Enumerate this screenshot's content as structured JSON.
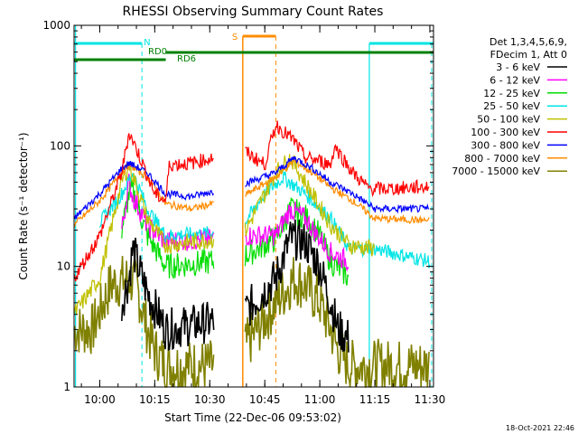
{
  "chart_data": {
    "type": "line",
    "title": "RHESSI Observing Summary Count Rates",
    "xlabel": "Start Time (22-Dec-06 09:53:02)",
    "ylabel": "Count Rate (s⁻¹ detector⁻¹)",
    "yscale": "log",
    "ylim": [
      1,
      1000
    ],
    "xlim_minutes": [
      0,
      98
    ],
    "xticks": [
      {
        "m": 7,
        "label": "10:00"
      },
      {
        "m": 22,
        "label": "10:15"
      },
      {
        "m": 37,
        "label": "10:30"
      },
      {
        "m": 52,
        "label": "10:45"
      },
      {
        "m": 67,
        "label": "11:00"
      },
      {
        "m": 82,
        "label": "11:15"
      },
      {
        "m": 97,
        "label": "11:30"
      }
    ],
    "yticks": [
      {
        "v": 1,
        "label": "1"
      },
      {
        "v": 10,
        "label": "10"
      },
      {
        "v": 100,
        "label": "100"
      },
      {
        "v": 1000,
        "label": "1000"
      }
    ],
    "legend": {
      "header": [
        "Det 1,3,4,5,6,9,",
        "FDecim 1, Att 0"
      ],
      "placement": "right"
    },
    "series": [
      {
        "name": "3 - 6 keV",
        "color": "#000000",
        "points": [
          [
            13,
            5
          ],
          [
            15,
            8
          ],
          [
            16,
            14
          ],
          [
            18,
            9
          ],
          [
            20,
            6
          ],
          [
            25,
            3
          ],
          [
            38,
            3.5
          ],
          [
            46,
            4
          ],
          [
            55,
            8
          ],
          [
            59,
            17
          ],
          [
            63,
            16
          ],
          [
            67,
            10
          ],
          [
            70,
            5
          ],
          [
            72,
            3
          ],
          [
            75,
            2.5
          ]
        ]
      },
      {
        "name": "6 - 12 keV",
        "color": "#ff00ff",
        "points": [
          [
            13,
            20
          ],
          [
            15,
            50
          ],
          [
            16,
            38
          ],
          [
            20,
            22
          ],
          [
            25,
            16
          ],
          [
            38,
            17
          ],
          [
            46,
            18
          ],
          [
            55,
            18
          ],
          [
            59,
            30
          ],
          [
            63,
            25
          ],
          [
            67,
            17
          ],
          [
            70,
            13
          ],
          [
            75,
            11
          ]
        ]
      },
      {
        "name": "12 - 25 keV",
        "color": "#00dd00",
        "points": [
          [
            13,
            20
          ],
          [
            15,
            40
          ],
          [
            16,
            42
          ],
          [
            20,
            18
          ],
          [
            25,
            10
          ],
          [
            38,
            11
          ],
          [
            46,
            12
          ],
          [
            55,
            17
          ],
          [
            59,
            30
          ],
          [
            63,
            26
          ],
          [
            67,
            18
          ],
          [
            70,
            11
          ],
          [
            75,
            8
          ]
        ]
      },
      {
        "name": "25 - 50 keV",
        "color": "#00e5e5",
        "points": [
          [
            7,
            23
          ],
          [
            13,
            40
          ],
          [
            16,
            60
          ],
          [
            20,
            30
          ],
          [
            25,
            18
          ],
          [
            38,
            19
          ],
          [
            46,
            22
          ],
          [
            52,
            40
          ],
          [
            57,
            55
          ],
          [
            63,
            40
          ],
          [
            70,
            25
          ],
          [
            75,
            14
          ],
          [
            82,
            14
          ],
          [
            97,
            11
          ]
        ]
      },
      {
        "name": "50 - 100 keV",
        "color": "#c0c000",
        "points": [
          [
            0,
            4
          ],
          [
            7,
            8
          ],
          [
            13,
            50
          ],
          [
            15,
            70
          ],
          [
            20,
            25
          ],
          [
            25,
            15
          ],
          [
            46,
            18
          ],
          [
            55,
            60
          ],
          [
            59,
            80
          ],
          [
            63,
            50
          ],
          [
            70,
            22
          ],
          [
            75,
            15
          ],
          [
            82,
            14
          ]
        ]
      },
      {
        "name": "100 - 300 keV",
        "color": "#ff0000",
        "points": [
          [
            0,
            8
          ],
          [
            7,
            18
          ],
          [
            13,
            60
          ],
          [
            15,
            130
          ],
          [
            18,
            80
          ],
          [
            22,
            40
          ],
          [
            25,
            35
          ],
          [
            26,
            70
          ],
          [
            32,
            72
          ],
          [
            46,
            92
          ],
          [
            52,
            70
          ],
          [
            55,
            150
          ],
          [
            60,
            110
          ],
          [
            63,
            80
          ],
          [
            67,
            75
          ],
          [
            70,
            70
          ],
          [
            71,
            100
          ],
          [
            76,
            60
          ],
          [
            80,
            45
          ],
          [
            82,
            44
          ],
          [
            86,
            44
          ],
          [
            97,
            46
          ]
        ]
      },
      {
        "name": "300 - 800 keV",
        "color": "#0000ff",
        "points": [
          [
            0,
            25
          ],
          [
            7,
            40
          ],
          [
            13,
            65
          ],
          [
            15,
            72
          ],
          [
            20,
            60
          ],
          [
            25,
            40
          ],
          [
            32,
            38
          ],
          [
            46,
            48
          ],
          [
            55,
            60
          ],
          [
            60,
            80
          ],
          [
            65,
            65
          ],
          [
            70,
            50
          ],
          [
            76,
            40
          ],
          [
            82,
            30
          ],
          [
            97,
            30
          ]
        ]
      },
      {
        "name": "800 - 7000 keV",
        "color": "#ff8c00",
        "points": [
          [
            0,
            22
          ],
          [
            7,
            35
          ],
          [
            13,
            60
          ],
          [
            15,
            70
          ],
          [
            20,
            55
          ],
          [
            25,
            33
          ],
          [
            32,
            30
          ],
          [
            46,
            38
          ],
          [
            55,
            55
          ],
          [
            60,
            75
          ],
          [
            65,
            60
          ],
          [
            70,
            45
          ],
          [
            76,
            35
          ],
          [
            82,
            25
          ],
          [
            97,
            24
          ]
        ]
      },
      {
        "name": "7000 - 15000 keV",
        "color": "#808000",
        "points": [
          [
            0,
            3
          ],
          [
            5,
            3
          ],
          [
            10,
            7
          ],
          [
            15,
            8
          ],
          [
            17,
            7
          ],
          [
            20,
            3
          ],
          [
            22,
            2
          ],
          [
            25,
            1.5
          ],
          [
            38,
            1.5
          ],
          [
            46,
            2
          ],
          [
            55,
            5
          ],
          [
            60,
            8
          ],
          [
            63,
            7
          ],
          [
            67,
            5
          ],
          [
            70,
            3
          ],
          [
            72,
            2
          ],
          [
            75,
            1.5
          ],
          [
            97,
            1.5
          ]
        ]
      }
    ],
    "annotations": {
      "flags": [
        {
          "label": "N",
          "color": "#00e5e5"
        },
        {
          "label": "S",
          "color": "#ff8c00"
        },
        {
          "label": "RD0",
          "color": "#008000"
        },
        {
          "label": "RD6",
          "color": "#008000"
        }
      ],
      "timestamp": "18-Oct-2021 22:46"
    }
  }
}
